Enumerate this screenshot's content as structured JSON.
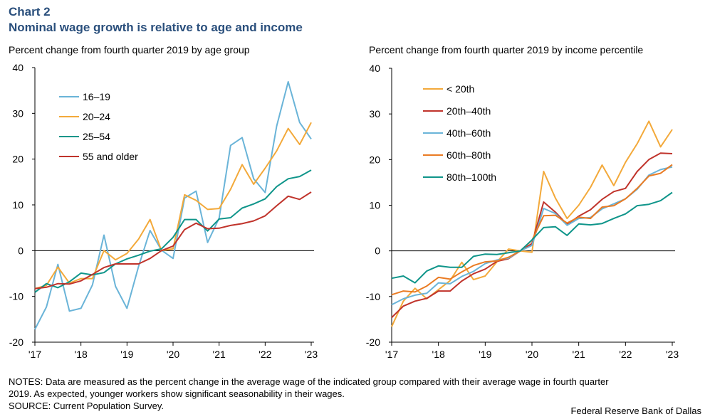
{
  "header": {
    "chart_number": "Chart 2",
    "title": "Nominal wage growth is relative to age and income"
  },
  "notes": {
    "line1": "NOTES: Data are measured as the percent change in the average wage of the indicated group compared with their average wage in fourth quarter",
    "line2": "2019. As expected, younger workers show significant seasonability in their wages.",
    "source": "SOURCE: Current Population Survey."
  },
  "credit": "Federal Reserve Bank of Dallas",
  "colors": {
    "light_blue": "#6ab4d8",
    "gold": "#f3a93a",
    "teal": "#0f958a",
    "red": "#c0332b",
    "orange": "#ea7b23"
  },
  "chart_data": [
    {
      "type": "line",
      "subtitle": "Percent change from fourth quarter 2019 by age group",
      "ylim": [
        -20,
        40
      ],
      "yticks": [
        "40",
        "30",
        "20",
        "10",
        "0",
        "-10",
        "-20"
      ],
      "yticks_values": [
        40,
        30,
        20,
        10,
        0,
        -10,
        -20
      ],
      "xlim": [
        0,
        24
      ],
      "xticks": [
        "'17",
        "'18",
        "'19",
        "'20",
        "'21",
        "'22",
        "'23"
      ],
      "xticks_values": [
        0,
        4,
        8,
        12,
        16,
        20,
        24
      ],
      "legend_position": "top-left",
      "series": [
        {
          "name": "16–19",
          "color": "#6ab4d8",
          "values": [
            -17.2,
            -12.3,
            -3.0,
            -13.2,
            -12.6,
            -7.5,
            3.4,
            -7.8,
            -12.6,
            -3.5,
            4.4,
            0.1,
            -1.7,
            11.5,
            13.0,
            1.8,
            7.1,
            23.0,
            24.7,
            15.7,
            12.7,
            27.2,
            36.9,
            28.0,
            24.4
          ]
        },
        {
          "name": "20–24",
          "color": "#f3a93a",
          "values": [
            -8.3,
            -7.6,
            -3.6,
            -7.1,
            -6.1,
            -6.1,
            0.0,
            -2.0,
            -0.6,
            2.5,
            6.8,
            0.0,
            0.4,
            12.2,
            11.0,
            9.0,
            9.2,
            13.4,
            18.8,
            14.5,
            18.0,
            21.8,
            26.7,
            23.2,
            28.0
          ]
        },
        {
          "name": "25–54",
          "color": "#0f958a",
          "values": [
            -9.1,
            -7.2,
            -8.1,
            -6.8,
            -4.9,
            -5.3,
            -4.8,
            -2.9,
            -1.8,
            -1.0,
            -0.1,
            0.4,
            2.9,
            6.8,
            6.8,
            4.3,
            6.9,
            7.2,
            9.3,
            10.2,
            11.3,
            14.0,
            15.7,
            16.2,
            17.6
          ]
        },
        {
          "name": "55 and older",
          "color": "#c0332b",
          "values": [
            -8.3,
            -8.0,
            -7.2,
            -7.3,
            -6.6,
            -5.2,
            -3.7,
            -2.9,
            -2.9,
            -2.9,
            -1.7,
            0.0,
            1.0,
            4.6,
            6.0,
            4.8,
            4.9,
            5.5,
            5.9,
            6.5,
            7.6,
            9.8,
            11.9,
            11.2,
            12.8
          ]
        }
      ]
    },
    {
      "type": "line",
      "subtitle": "Percent change from fourth quarter 2019 by income percentile",
      "ylim": [
        -20,
        40
      ],
      "yticks": [
        "40",
        "30",
        "20",
        "10",
        "0",
        "-10",
        "-20"
      ],
      "yticks_values": [
        40,
        30,
        20,
        10,
        0,
        -10,
        -20
      ],
      "xlim": [
        0,
        24
      ],
      "xticks": [
        "'17",
        "'18",
        "'19",
        "'20",
        "'21",
        "'22",
        "'23"
      ],
      "xticks_values": [
        0,
        4,
        8,
        12,
        16,
        20,
        24
      ],
      "legend_position": "top-left",
      "series": [
        {
          "name": "< 20th",
          "color": "#f3a93a",
          "values": [
            -16.6,
            -11.0,
            -8.2,
            -10.5,
            -8.5,
            -6.5,
            -2.5,
            -6.3,
            -5.5,
            -2.4,
            0.4,
            0.0,
            -0.3,
            17.4,
            11.6,
            7.1,
            10.0,
            13.9,
            18.8,
            14.3,
            19.4,
            23.5,
            28.4,
            22.8,
            26.6
          ]
        },
        {
          "name": "20th–40th",
          "color": "#c0332b",
          "values": [
            -14.6,
            -12.1,
            -11.0,
            -10.4,
            -8.8,
            -8.8,
            -6.6,
            -5.0,
            -4.0,
            -2.3,
            -1.7,
            0.0,
            1.6,
            10.7,
            8.5,
            5.8,
            7.6,
            9.0,
            11.3,
            13.0,
            13.7,
            17.4,
            20.0,
            21.4,
            21.3
          ]
        },
        {
          "name": "40th–60th",
          "color": "#6ab4d8",
          "values": [
            -11.8,
            -10.5,
            -9.7,
            -9.3,
            -7.0,
            -7.2,
            -5.6,
            -4.5,
            -2.8,
            -2.0,
            -1.6,
            0.0,
            1.2,
            9.3,
            8.2,
            5.6,
            7.1,
            7.3,
            9.2,
            10.3,
            11.4,
            13.5,
            16.6,
            17.8,
            18.4
          ]
        },
        {
          "name": "60th–80th",
          "color": "#ea7b23",
          "values": [
            -9.6,
            -8.8,
            -9.0,
            -7.7,
            -5.8,
            -6.2,
            -4.6,
            -3.2,
            -2.4,
            -2.2,
            -1.4,
            0.0,
            2.3,
            7.7,
            7.8,
            6.1,
            7.4,
            7.1,
            9.6,
            9.9,
            11.4,
            13.7,
            16.4,
            17.0,
            18.9
          ]
        },
        {
          "name": "80th–100th",
          "color": "#0f958a",
          "values": [
            -6.0,
            -5.5,
            -7.0,
            -4.4,
            -3.3,
            -3.6,
            -3.6,
            -1.2,
            -0.7,
            -0.8,
            -0.4,
            0.0,
            2.4,
            5.1,
            5.3,
            3.4,
            5.9,
            5.7,
            6.0,
            7.1,
            8.1,
            9.9,
            10.2,
            11.0,
            12.8
          ]
        }
      ]
    }
  ]
}
